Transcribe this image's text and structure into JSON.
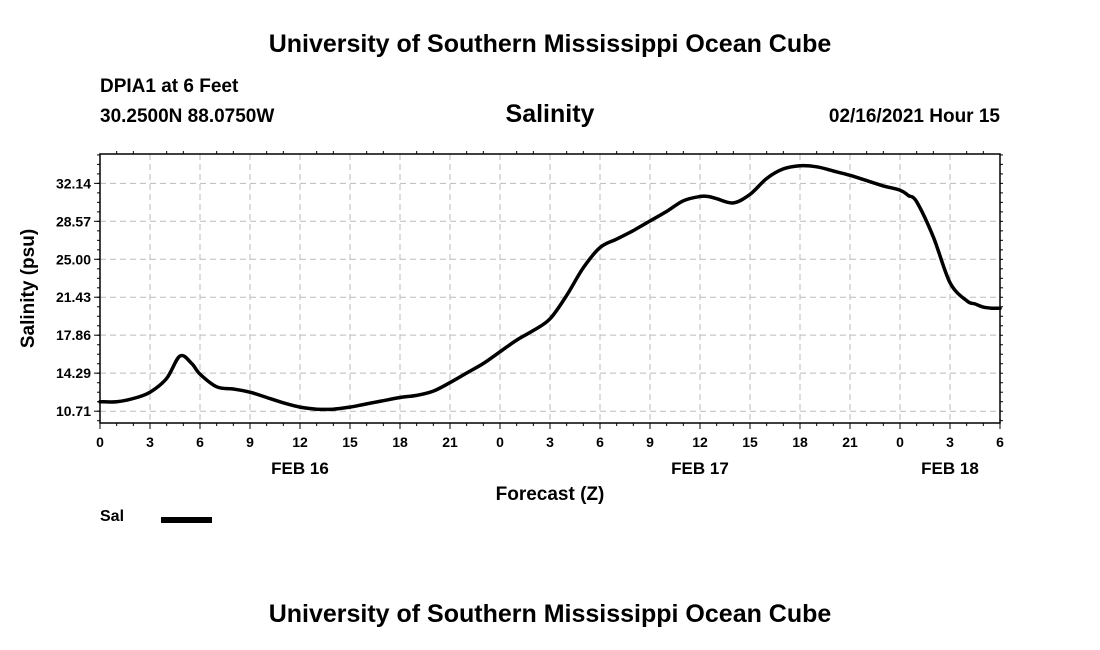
{
  "header": {
    "title": "University of Southern Mississippi Ocean Cube",
    "station": "DPIA1 at 6 Feet",
    "coords": "30.2500N 88.0750W",
    "datetime": "02/16/2021 Hour 15"
  },
  "footer": {
    "title": "University of Southern Mississippi Ocean Cube"
  },
  "chart_data": {
    "type": "line",
    "title": "Salinity",
    "xlabel": "Forecast (Z)",
    "ylabel": "Salinity (psu)",
    "ylim": [
      9.6,
      34.9
    ],
    "yticks": [
      "10.71",
      "14.29",
      "17.86",
      "21.43",
      "25.00",
      "28.57",
      "32.14"
    ],
    "xlim": [
      0,
      54
    ],
    "xtick_labels": [
      "0",
      "3",
      "6",
      "9",
      "12",
      "15",
      "18",
      "21",
      "0",
      "3",
      "6",
      "9",
      "12",
      "15",
      "18",
      "21",
      "0",
      "3",
      "6"
    ],
    "day_labels": [
      {
        "label": "FEB 16",
        "hour": 12
      },
      {
        "label": "FEB 17",
        "hour": 36
      },
      {
        "label": "FEB 18",
        "hour": 51
      }
    ],
    "grid": true,
    "legend_position": "bottom-left",
    "line_color": "#000000",
    "series": [
      {
        "name": "Sal",
        "x": [
          0,
          1,
          2,
          3,
          4,
          4.8,
          5.5,
          6,
          7,
          8,
          9,
          10,
          11,
          12,
          13,
          14,
          15,
          16,
          17,
          18,
          19,
          20,
          21,
          22,
          23,
          24,
          25,
          26,
          27,
          28,
          29,
          30,
          31,
          32,
          33,
          34,
          35,
          36,
          36.5,
          37,
          38,
          39,
          40,
          41,
          42,
          43,
          44,
          45,
          46,
          47,
          48,
          48.5,
          49,
          50,
          51,
          52,
          52.5,
          53,
          53.5,
          54
        ],
        "y": [
          11.6,
          11.6,
          11.9,
          12.5,
          13.8,
          15.9,
          15.2,
          14.2,
          13.0,
          12.8,
          12.5,
          12.0,
          11.5,
          11.1,
          10.9,
          10.9,
          11.1,
          11.4,
          11.7,
          12.0,
          12.2,
          12.6,
          13.4,
          14.3,
          15.2,
          16.3,
          17.4,
          18.3,
          19.4,
          21.6,
          24.2,
          26.1,
          26.9,
          27.7,
          28.6,
          29.5,
          30.5,
          30.9,
          30.9,
          30.7,
          30.3,
          31.1,
          32.6,
          33.5,
          33.8,
          33.7,
          33.3,
          32.9,
          32.4,
          31.9,
          31.5,
          31.0,
          30.4,
          27.1,
          22.8,
          21.1,
          20.8,
          20.5,
          20.4,
          20.4
        ]
      }
    ]
  }
}
